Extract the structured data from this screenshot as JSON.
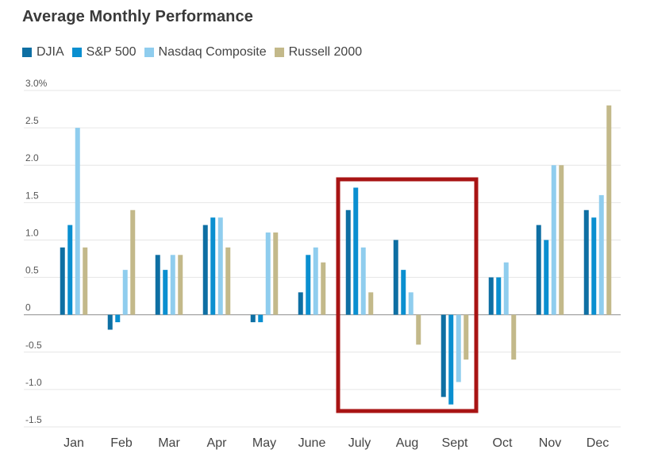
{
  "chart_data": {
    "type": "bar",
    "title": "Average Monthly Performance",
    "categories": [
      "Jan",
      "Feb",
      "Mar",
      "Apr",
      "May",
      "June",
      "July",
      "Aug",
      "Sept",
      "Oct",
      "Nov",
      "Dec"
    ],
    "series": [
      {
        "name": "DJIA",
        "color": "#0e6fa3",
        "values": [
          0.9,
          -0.2,
          0.8,
          1.2,
          -0.1,
          0.3,
          1.4,
          1.0,
          -1.1,
          0.5,
          1.2,
          1.4
        ]
      },
      {
        "name": "S&P 500",
        "color": "#0a8fd0",
        "values": [
          1.2,
          -0.1,
          0.6,
          1.3,
          -0.1,
          0.8,
          1.7,
          0.6,
          -1.2,
          0.5,
          1.0,
          1.3
        ]
      },
      {
        "name": "Nasdaq Composite",
        "color": "#8fcdee",
        "values": [
          2.5,
          0.6,
          0.8,
          1.3,
          1.1,
          0.9,
          0.9,
          0.3,
          -0.9,
          0.7,
          2.0,
          1.6
        ]
      },
      {
        "name": "Russell 2000",
        "color": "#c3b98a",
        "values": [
          0.9,
          1.4,
          0.8,
          0.9,
          1.1,
          0.7,
          0.3,
          -0.4,
          -0.6,
          -0.6,
          2.0,
          2.8
        ]
      }
    ],
    "yticks": [
      "3.0%",
      "2.5",
      "2.0",
      "1.5",
      "1.0",
      "0.5",
      "0",
      "-0.5",
      "-1.0",
      "-1.5"
    ],
    "ylim": [
      -1.5,
      3.0
    ],
    "grid": true,
    "legend_position": "top-left",
    "highlight": {
      "categories": [
        "July",
        "Aug",
        "Sept"
      ],
      "color": "#a81414"
    }
  }
}
